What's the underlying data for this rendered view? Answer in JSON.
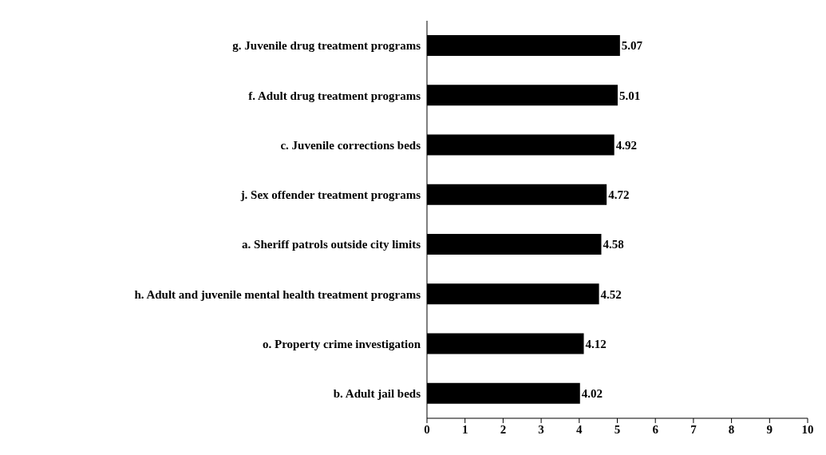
{
  "chart_data": {
    "type": "bar",
    "orientation": "horizontal",
    "categories": [
      "g. Juvenile drug treatment programs",
      "f. Adult drug treatment programs",
      "c. Juvenile corrections beds",
      "j. Sex offender treatment programs",
      "a. Sheriff patrols outside city limits",
      "h. Adult and juvenile mental health treatment programs",
      "o. Property crime investigation",
      "b. Adult jail beds"
    ],
    "values": [
      5.07,
      5.01,
      4.92,
      4.72,
      4.58,
      4.52,
      4.12,
      4.02
    ],
    "color": "#000000",
    "xlim": [
      0,
      10
    ],
    "xticks": [
      0,
      1,
      2,
      3,
      4,
      5,
      6,
      7,
      8,
      9,
      10
    ],
    "data_labels": true,
    "grid": false,
    "legend": false
  }
}
